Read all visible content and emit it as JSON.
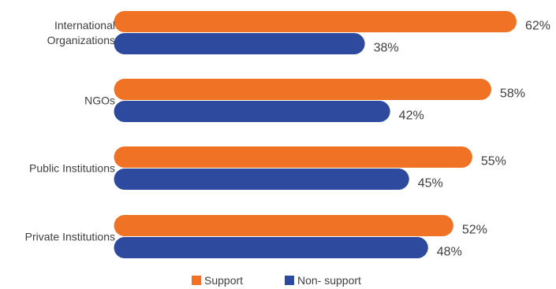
{
  "chart_data": {
    "type": "bar",
    "orientation": "horizontal",
    "categories": [
      [
        "International",
        "Organizations"
      ],
      [
        "NGOs"
      ],
      [
        "Public Institutions"
      ],
      [
        "Private Institutions"
      ]
    ],
    "series": [
      {
        "name": "Support",
        "color": "#F07224",
        "values": [
          62,
          58,
          55,
          52
        ],
        "labels": [
          "62%",
          "58%",
          "55%",
          "52%"
        ]
      },
      {
        "name": "Non- support",
        "color": "#2E4A9E",
        "values": [
          38,
          42,
          45,
          48
        ],
        "labels": [
          "38%",
          "42%",
          "45%",
          "48%"
        ]
      }
    ],
    "xlim": [
      0,
      62
    ],
    "grid": false,
    "legend_position": "bottom"
  }
}
